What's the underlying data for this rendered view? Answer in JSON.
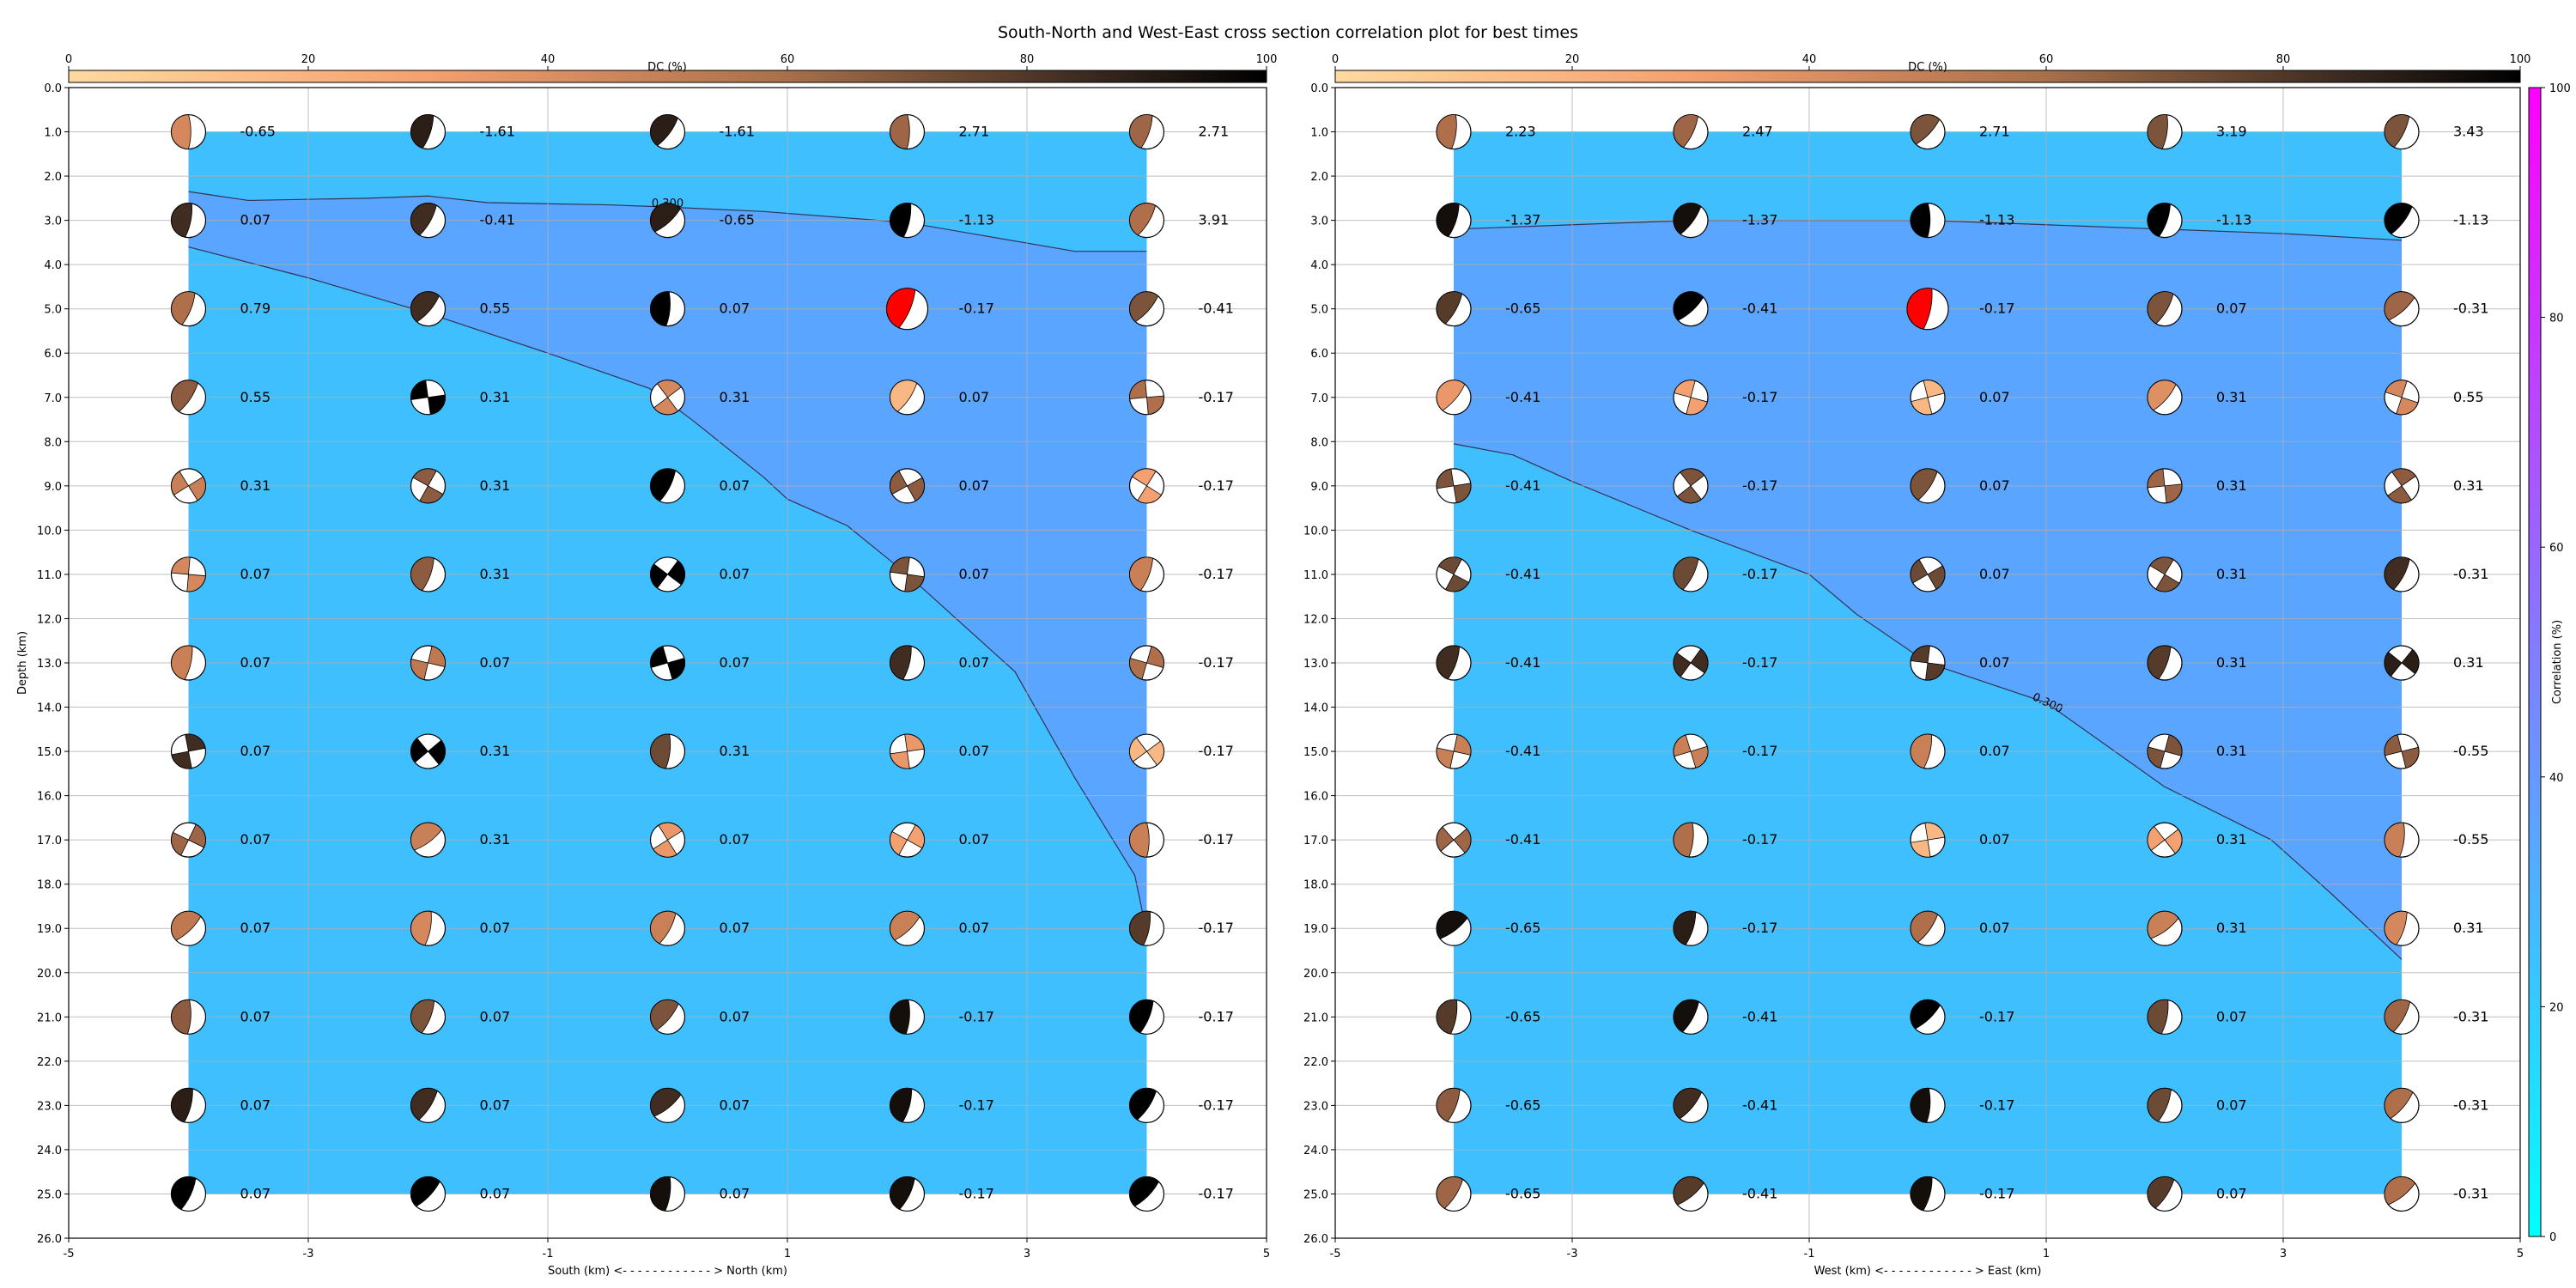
{
  "title": "South-North and West-East cross section correlation plot for best times",
  "colors": {
    "region_low": "#40bfff",
    "region_high": "#5aa5ff",
    "contour_line": "#333355",
    "dc_cmap": [
      "#ffd9a0",
      "#f4a070",
      "#c07850",
      "#6b4a36",
      "#000000"
    ],
    "corr_cmap": [
      "#00ffff",
      "#40bfff",
      "#807fff",
      "#bf40ff",
      "#ff00ff"
    ],
    "highlight": "#ff0000"
  },
  "dc_colorbar": {
    "label": "DC (%)",
    "range": [
      0,
      100
    ],
    "ticks": [
      "0",
      "20",
      "40",
      "60",
      "80",
      "100"
    ]
  },
  "corr_colorbar": {
    "label": "Correlation (%)",
    "range": [
      0,
      100
    ],
    "ticks": [
      "0",
      "20",
      "40",
      "60",
      "80",
      "100"
    ]
  },
  "chart_data": [
    {
      "type": "scatter",
      "subtype": "focal-mechanism cross section with correlation contour",
      "xlabel": "South (km) <- - - - - - - - - - - - > North (km)",
      "ylabel": "Depth (km)",
      "xlim": [
        -5,
        5
      ],
      "ylim": [
        26,
        0
      ],
      "xticks": [
        "-5",
        "-3",
        "-1",
        "1",
        "3",
        "5"
      ],
      "yticks": [
        "0.0",
        "1.0",
        "2.0",
        "3.0",
        "4.0",
        "5.0",
        "6.0",
        "7.0",
        "8.0",
        "9.0",
        "10.0",
        "11.0",
        "12.0",
        "13.0",
        "14.0",
        "15.0",
        "16.0",
        "17.0",
        "18.0",
        "19.0",
        "20.0",
        "21.0",
        "22.0",
        "23.0",
        "24.0",
        "25.0",
        "26.0"
      ],
      "grid": true,
      "x": [
        -4,
        -2,
        0,
        2,
        4
      ],
      "depths": [
        1,
        3,
        5,
        7,
        9,
        11,
        13,
        15,
        17,
        19,
        21,
        23,
        25
      ],
      "values": [
        [
          "-0.65",
          "-1.61",
          "-1.61",
          "2.71",
          "2.71"
        ],
        [
          "0.07",
          "-0.41",
          "-0.65",
          "-1.13",
          "3.91"
        ],
        [
          "0.79",
          "0.55",
          "0.07",
          "-0.17",
          "-0.41"
        ],
        [
          "0.55",
          "0.31",
          "0.31",
          "0.07",
          "-0.17"
        ],
        [
          "0.31",
          "0.31",
          "0.07",
          "0.07",
          "-0.17"
        ],
        [
          "0.07",
          "0.31",
          "0.07",
          "0.07",
          "-0.17"
        ],
        [
          "0.07",
          "0.07",
          "0.07",
          "0.07",
          "-0.17"
        ],
        [
          "0.07",
          "0.31",
          "0.31",
          "0.07",
          "-0.17"
        ],
        [
          "0.07",
          "0.31",
          "0.07",
          "0.07",
          "-0.17"
        ],
        [
          "0.07",
          "0.07",
          "0.07",
          "0.07",
          "-0.17"
        ],
        [
          "0.07",
          "0.07",
          "0.07",
          "-0.17",
          "-0.17"
        ],
        [
          "0.07",
          "0.07",
          "0.07",
          "-0.17",
          "-0.17"
        ],
        [
          "0.07",
          "0.07",
          "0.07",
          "-0.17",
          "-0.17"
        ]
      ],
      "dc_percent": [
        [
          40,
          90,
          90,
          60,
          60
        ],
        [
          85,
          85,
          90,
          100,
          55
        ],
        [
          55,
          85,
          100,
          null,
          70
        ],
        [
          65,
          100,
          40,
          15,
          55
        ],
        [
          45,
          65,
          100,
          65,
          25
        ],
        [
          40,
          65,
          100,
          70,
          45
        ],
        [
          45,
          50,
          100,
          85,
          55
        ],
        [
          85,
          100,
          75,
          30,
          15
        ],
        [
          60,
          45,
          30,
          25,
          45
        ],
        [
          50,
          40,
          45,
          45,
          80
        ],
        [
          65,
          70,
          70,
          95,
          100
        ],
        [
          90,
          85,
          85,
          95,
          100
        ],
        [
          100,
          100,
          95,
          95,
          100
        ]
      ],
      "contours": [
        {
          "label": "0.300",
          "upper": [
            [
              -4,
              2.35
            ],
            [
              -3.5,
              2.55
            ],
            [
              -2.5,
              2.5
            ],
            [
              -2,
              2.45
            ],
            [
              -1.5,
              2.6
            ],
            [
              -0.5,
              2.65
            ],
            [
              0,
              2.7
            ],
            [
              0.8,
              2.8
            ],
            [
              2,
              3.05
            ],
            [
              3.4,
              3.7
            ],
            [
              4,
              3.7
            ]
          ],
          "lower": [
            [
              -4,
              3.6
            ],
            [
              -3,
              4.3
            ],
            [
              -2,
              5.1
            ],
            [
              -1,
              6.0
            ],
            [
              -0.15,
              6.8
            ],
            [
              0.2,
              7.5
            ],
            [
              0.8,
              8.8
            ],
            [
              1,
              9.3
            ],
            [
              1.5,
              9.9
            ],
            [
              2,
              11.0
            ],
            [
              2.9,
              13.2
            ],
            [
              3.4,
              15.6
            ],
            [
              3.9,
              17.8
            ],
            [
              4,
              19.1
            ]
          ]
        }
      ]
    },
    {
      "type": "scatter",
      "subtype": "focal-mechanism cross section with correlation contour",
      "xlabel": "West (km) <- - - - - - - - - - - - > East (km)",
      "ylabel": "",
      "xlim": [
        -5,
        5
      ],
      "ylim": [
        26,
        0
      ],
      "xticks": [
        "-5",
        "-3",
        "-1",
        "1",
        "3",
        "5"
      ],
      "yticks": [
        "0.0",
        "1.0",
        "2.0",
        "3.0",
        "4.0",
        "5.0",
        "6.0",
        "7.0",
        "8.0",
        "9.0",
        "10.0",
        "11.0",
        "12.0",
        "13.0",
        "14.0",
        "15.0",
        "16.0",
        "17.0",
        "18.0",
        "19.0",
        "20.0",
        "21.0",
        "22.0",
        "23.0",
        "24.0",
        "25.0",
        "26.0"
      ],
      "grid": true,
      "x": [
        -4,
        -2,
        0,
        2,
        4
      ],
      "depths": [
        1,
        3,
        5,
        7,
        9,
        11,
        13,
        15,
        17,
        19,
        21,
        23,
        25
      ],
      "values": [
        [
          "2.23",
          "2.47",
          "2.71",
          "3.19",
          "3.43"
        ],
        [
          "-1.37",
          "-1.37",
          "-1.13",
          "-1.13",
          "-1.13"
        ],
        [
          "-0.65",
          "-0.41",
          "-0.17",
          "0.07",
          "-0.31"
        ],
        [
          "-0.41",
          "-0.17",
          "0.07",
          "0.31",
          "0.55"
        ],
        [
          "-0.41",
          "-0.17",
          "0.07",
          "0.31",
          "0.31"
        ],
        [
          "-0.41",
          "-0.17",
          "0.07",
          "0.31",
          "-0.31"
        ],
        [
          "-0.41",
          "-0.17",
          "0.07",
          "0.31",
          "0.31"
        ],
        [
          "-0.41",
          "-0.17",
          "0.07",
          "0.31",
          "-0.55"
        ],
        [
          "-0.41",
          "-0.17",
          "0.07",
          "0.31",
          "-0.55"
        ],
        [
          "-0.65",
          "-0.17",
          "0.07",
          "0.31",
          "0.31"
        ],
        [
          "-0.65",
          "-0.41",
          "-0.17",
          "0.07",
          "-0.31"
        ],
        [
          "-0.65",
          "-0.41",
          "-0.17",
          "0.07",
          "-0.31"
        ],
        [
          "-0.65",
          "-0.41",
          "-0.17",
          "0.07",
          "-0.31"
        ]
      ],
      "dc_percent": [
        [
          55,
          60,
          70,
          70,
          70
        ],
        [
          95,
          95,
          100,
          100,
          100
        ],
        [
          80,
          100,
          null,
          70,
          60
        ],
        [
          30,
          25,
          15,
          35,
          40
        ],
        [
          70,
          70,
          70,
          60,
          65
        ],
        [
          75,
          75,
          75,
          70,
          85
        ],
        [
          85,
          85,
          80,
          80,
          90
        ],
        [
          45,
          45,
          45,
          70,
          65
        ],
        [
          60,
          55,
          15,
          25,
          45
        ],
        [
          95,
          90,
          55,
          45,
          40
        ],
        [
          80,
          95,
          100,
          75,
          60
        ],
        [
          65,
          85,
          95,
          75,
          55
        ],
        [
          60,
          80,
          95,
          80,
          55
        ]
      ],
      "contours": [
        {
          "label": "0.300",
          "upper": [
            [
              -4,
              3.2
            ],
            [
              -3,
              3.1
            ],
            [
              -2,
              3.0
            ],
            [
              -1,
              3.0
            ],
            [
              0,
              3.0
            ],
            [
              1,
              3.1
            ],
            [
              2,
              3.2
            ],
            [
              3,
              3.3
            ],
            [
              4,
              3.45
            ]
          ],
          "lower": [
            [
              -4,
              8.05
            ],
            [
              -3.5,
              8.3
            ],
            [
              -3,
              8.9
            ],
            [
              -2,
              10.0
            ],
            [
              -1,
              11.0
            ],
            [
              -0.6,
              11.9
            ],
            [
              0,
              13.0
            ],
            [
              1,
              13.9
            ],
            [
              2,
              15.8
            ],
            [
              2.9,
              17.0
            ],
            [
              3.4,
              18.2
            ],
            [
              4,
              19.7
            ]
          ]
        }
      ]
    }
  ]
}
